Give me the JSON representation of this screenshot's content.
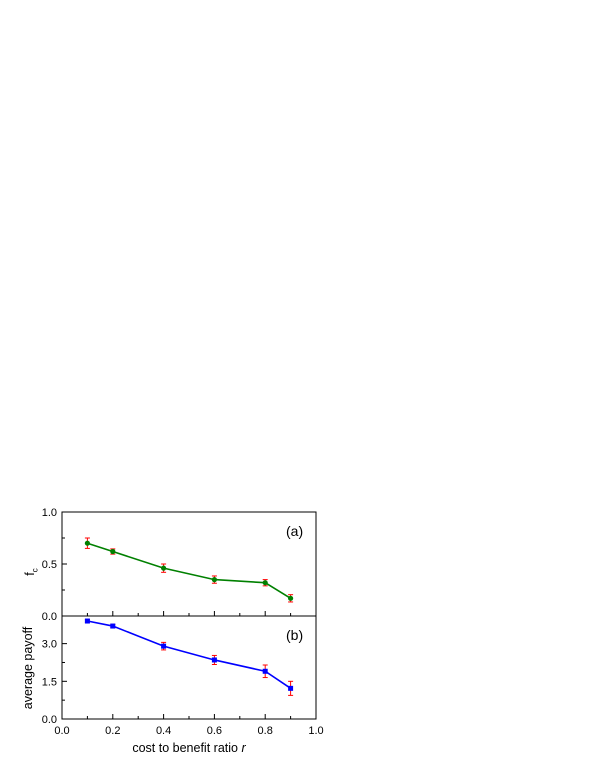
{
  "chart_data": [
    {
      "type": "line",
      "panel_label": "(a)",
      "ylabel": "f",
      "ylabel_subscript": "c",
      "xlabel": "",
      "xlim": [
        0.0,
        1.0
      ],
      "ylim": [
        0.0,
        1.0
      ],
      "yticks": [
        0.0,
        0.5,
        1.0
      ],
      "ytick_labels": [
        "0.0",
        "0.5",
        "1.0"
      ],
      "grid": false,
      "series": [
        {
          "color": "#008000",
          "marker": "circle",
          "errorbar_color": "#ff0000",
          "x": [
            0.1,
            0.2,
            0.4,
            0.6,
            0.8,
            0.9
          ],
          "y": [
            0.7,
            0.62,
            0.46,
            0.35,
            0.32,
            0.17
          ],
          "err": [
            0.05,
            0.025,
            0.04,
            0.035,
            0.03,
            0.035
          ]
        }
      ]
    },
    {
      "type": "line",
      "panel_label": "(b)",
      "ylabel": "average payoff",
      "xlabel": "cost to benefit ratio",
      "xlabel_italic": "r",
      "xlim": [
        0.0,
        1.0
      ],
      "ylim": [
        0.0,
        4.1
      ],
      "xticks": [
        0.0,
        0.2,
        0.4,
        0.6,
        0.8,
        1.0
      ],
      "xtick_labels": [
        "0.0",
        "0.2",
        "0.4",
        "0.6",
        "0.8",
        "1.0"
      ],
      "yticks": [
        0.0,
        1.5,
        3.0
      ],
      "ytick_labels": [
        "0.0",
        "1.5",
        "3.0"
      ],
      "grid": false,
      "series": [
        {
          "color": "#0000ff",
          "marker": "square",
          "errorbar_color": "#ff0000",
          "x": [
            0.1,
            0.2,
            0.4,
            0.6,
            0.8,
            0.9
          ],
          "y": [
            3.9,
            3.7,
            2.9,
            2.35,
            1.9,
            1.22
          ],
          "err": [
            0.05,
            0.07,
            0.15,
            0.18,
            0.25,
            0.28
          ]
        }
      ]
    }
  ]
}
